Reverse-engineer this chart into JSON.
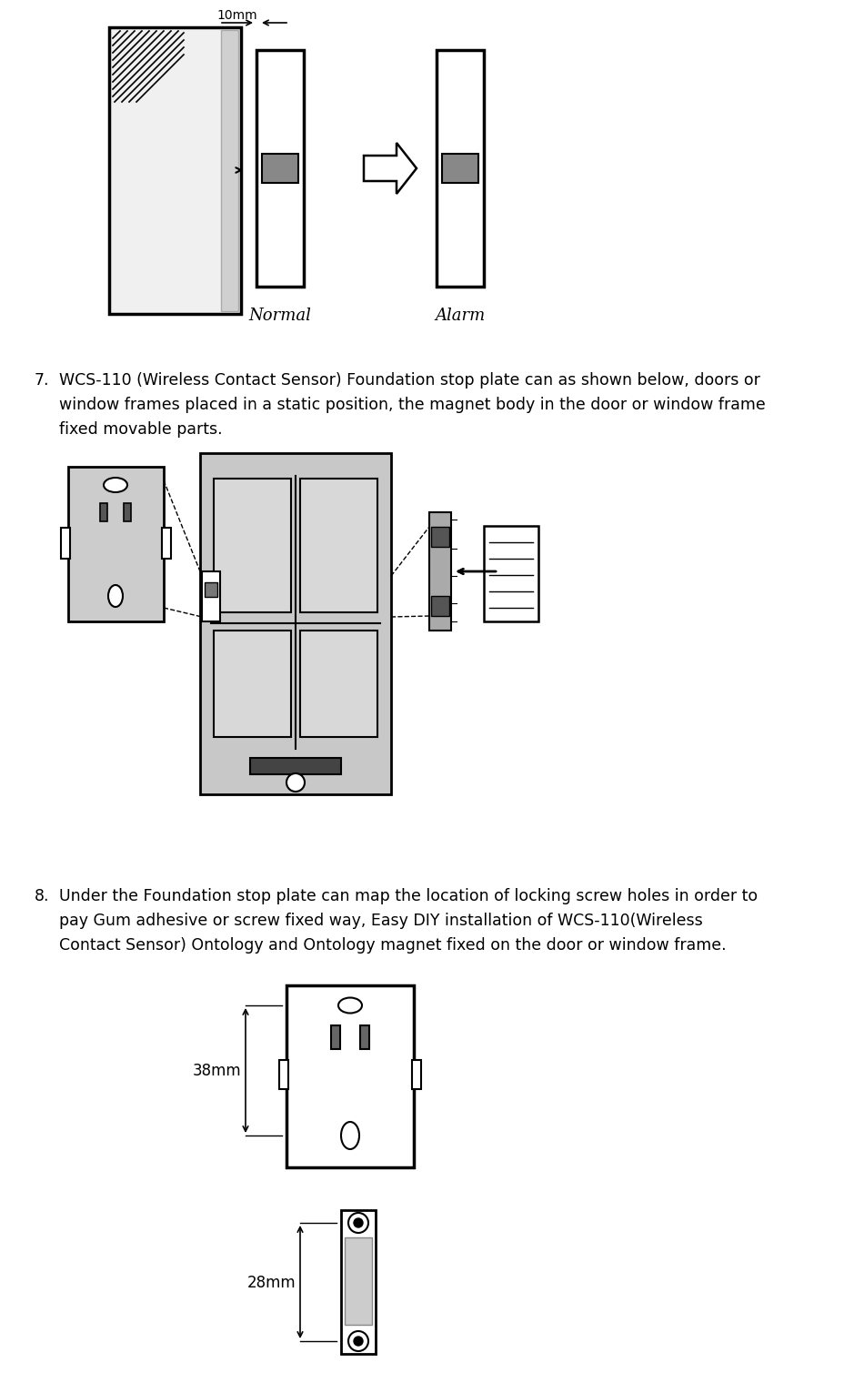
{
  "bg_color": "#ffffff",
  "text_color": "#000000",
  "fig_width": 9.3,
  "fig_height": 15.06,
  "label_10mm": "10mm",
  "label_normal": "Normal",
  "label_alarm": "Alarm",
  "label_38mm": "38mm",
  "label_28mm": "28mm",
  "item7_line1": "WCS-110 (Wireless Contact Sensor) Foundation stop plate can as shown below, doors or",
  "item7_line2": "window frames placed in a static position, the magnet body in the door or window frame",
  "item7_line3": "fixed movable parts.",
  "item8_line1": "Under the Foundation stop plate can map the location of locking screw holes in order to",
  "item8_line2": "pay Gum adhesive or screw fixed way, Easy DIY installation of WCS-110(Wireless",
  "item8_line3": "Contact Sensor) Ontology and Ontology magnet fixed on the door or window frame."
}
